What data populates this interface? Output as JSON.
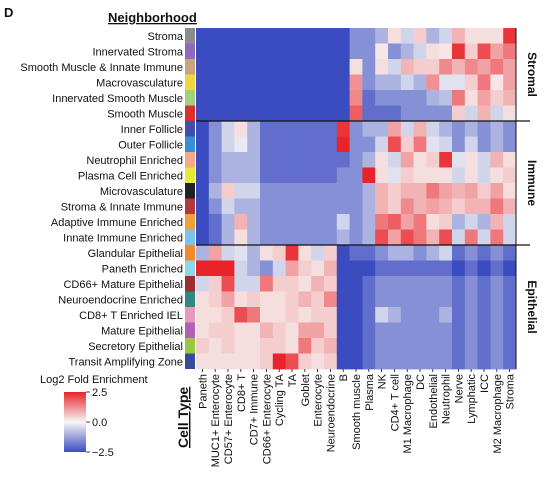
{
  "chart_data": {
    "type": "heatmap",
    "panel_label": "D",
    "row_header": "Neighborhood",
    "column_header": "Cell Type",
    "rows": [
      {
        "name": "Stroma",
        "color": "#8c8c8c"
      },
      {
        "name": "Innervated Stroma",
        "color": "#8e6bbf"
      },
      {
        "name": "Smooth Muscle & Innate Immune",
        "color": "#c9a57a"
      },
      {
        "name": "Macrovasculature",
        "color": "#f0d640"
      },
      {
        "name": "Innervated Smooth Muscle",
        "color": "#a5d07a"
      },
      {
        "name": "Smooth Muscle",
        "color": "#d93030"
      },
      {
        "name": "Inner Follicle",
        "color": "#3f4fa8"
      },
      {
        "name": "Outer Follicle",
        "color": "#3a8ed6"
      },
      {
        "name": "Neutrophil Enriched",
        "color": "#f4a988"
      },
      {
        "name": "Plasma Cell Enriched",
        "color": "#e8e83a"
      },
      {
        "name": "Microvasculature",
        "color": "#222222"
      },
      {
        "name": "Stroma & Innate Immune",
        "color": "#b23a3a"
      },
      {
        "name": "Adaptive Immune Enriched",
        "color": "#f2a13a"
      },
      {
        "name": "Innate Immune Enriched",
        "color": "#7fc1e4"
      },
      {
        "name": "Glandular Epithelial",
        "color": "#f08a2a"
      },
      {
        "name": "Paneth Enriched",
        "color": "#8fd6e8"
      },
      {
        "name": "CD66+ Mature Epithelial",
        "color": "#9a2f2f"
      },
      {
        "name": "Neuroendocrine Enriched",
        "color": "#2e8a80"
      },
      {
        "name": "CD8+ T Enriched IEL",
        "color": "#e89ab8"
      },
      {
        "name": "Mature Epithelial",
        "color": "#b060b8"
      },
      {
        "name": "Secretory Epithelial",
        "color": "#9ac83a"
      },
      {
        "name": "Transit Amplifying Zone",
        "color": "#3a4a9a"
      }
    ],
    "columns": [
      "Paneth",
      "MUC1+ Enterocyte",
      "CD57+ Enterocyte",
      "CD8+ T",
      "CD7+ Immune",
      "CD66+ Enterocyte",
      "Cycling TA",
      "TA",
      "Goblet",
      "Enterocyte",
      "Neuroendocrine",
      "B",
      "Smooth muscle",
      "Plasma",
      "NK",
      "CD4+ T cell",
      "M1 Macrophage",
      "DC",
      "Endothelial",
      "Neutrophil",
      "Nerve",
      "Lymphatic",
      "ICC",
      "M2 Macrophage",
      "Stroma"
    ],
    "groups": [
      {
        "label": "Stromal",
        "row_start": 0,
        "row_end": 5
      },
      {
        "label": "Immune",
        "row_start": 6,
        "row_end": 13
      },
      {
        "label": "Epithelial",
        "row_start": 14,
        "row_end": 21
      }
    ],
    "values": [
      [
        -2.5,
        -2.5,
        -2.5,
        -2.5,
        -2.5,
        -2.5,
        -2.5,
        -2.5,
        -2.5,
        -2.5,
        -2.5,
        -2.5,
        -1.5,
        -1.5,
        -1.0,
        0.3,
        -0.5,
        0.5,
        -1.0,
        -0.5,
        0.8,
        0.3,
        0.3,
        0.3,
        2.3
      ],
      [
        -2.5,
        -2.5,
        -2.5,
        -2.5,
        -2.5,
        -2.5,
        -2.5,
        -2.5,
        -2.5,
        -2.5,
        -2.5,
        -2.5,
        -1.5,
        -1.5,
        0.2,
        -1.5,
        -1.0,
        -0.5,
        0.3,
        0.2,
        2.3,
        0.5,
        2.0,
        1.0,
        1.5
      ],
      [
        -2.5,
        -2.5,
        -2.5,
        -2.5,
        -2.5,
        -2.5,
        -2.5,
        -2.5,
        -2.5,
        -2.5,
        -2.5,
        -2.5,
        0.3,
        -1.5,
        0.3,
        -0.5,
        0.8,
        0.5,
        0.5,
        1.3,
        0.8,
        1.3,
        1.0,
        1.5,
        1.0
      ],
      [
        -2.5,
        -2.5,
        -2.5,
        -2.5,
        -2.5,
        -2.5,
        -2.5,
        -2.5,
        -2.5,
        -2.5,
        -2.5,
        -2.5,
        1.2,
        -1.5,
        -1.0,
        -1.0,
        -0.5,
        -1.0,
        1.2,
        -0.3,
        -0.3,
        0.5,
        1.5,
        0.2,
        1.0
      ],
      [
        -2.5,
        -2.5,
        -2.5,
        -2.5,
        -2.5,
        -2.5,
        -2.5,
        -2.5,
        -2.5,
        -2.5,
        -2.5,
        -2.5,
        1.3,
        -2.0,
        -1.5,
        -1.5,
        -1.5,
        -1.5,
        -1.0,
        -0.8,
        1.5,
        0.3,
        1.0,
        0.5,
        0.8
      ],
      [
        -2.5,
        -2.5,
        -2.5,
        -2.5,
        -2.5,
        -2.5,
        -2.5,
        -2.5,
        -2.5,
        -2.5,
        -2.5,
        -2.5,
        1.8,
        -2.0,
        -2.0,
        -2.0,
        -1.5,
        -1.5,
        -1.5,
        -1.5,
        0.5,
        -0.5,
        0.8,
        -0.5,
        0.3
      ],
      [
        -2.5,
        -1.5,
        -0.5,
        0.3,
        -1.0,
        -2.0,
        -2.0,
        -2.0,
        -2.0,
        -2.0,
        -2.0,
        2.3,
        -1.5,
        -1.0,
        -1.0,
        1.0,
        -0.5,
        0.8,
        -0.5,
        -1.0,
        -1.5,
        -1.0,
        -1.5,
        -1.0,
        -1.5
      ],
      [
        -2.5,
        -1.5,
        -0.5,
        -0.2,
        -1.0,
        -2.0,
        -2.0,
        -2.0,
        -2.0,
        -2.0,
        -2.0,
        2.5,
        -1.5,
        -1.5,
        -0.5,
        2.0,
        0.5,
        1.5,
        -0.3,
        -0.5,
        -1.5,
        -0.5,
        -1.5,
        -1.0,
        -1.5
      ],
      [
        -2.5,
        -1.5,
        -1.0,
        -1.0,
        -1.0,
        -2.0,
        -2.0,
        -2.0,
        -2.0,
        -2.0,
        -2.0,
        -2.0,
        -1.5,
        -1.0,
        0.3,
        -0.5,
        1.0,
        0.3,
        0.5,
        2.3,
        -0.3,
        0.3,
        -0.5,
        0.8,
        0.3
      ],
      [
        -2.5,
        -1.5,
        -1.0,
        -1.0,
        -1.0,
        -2.0,
        -2.0,
        -2.0,
        -2.0,
        -2.0,
        -2.0,
        -1.5,
        -1.5,
        2.5,
        0.3,
        -0.3,
        0.5,
        0.3,
        0.3,
        0.3,
        -0.5,
        0.3,
        -0.5,
        0.3,
        0.5
      ],
      [
        -2.5,
        -1.0,
        0.5,
        -0.5,
        -0.5,
        -1.5,
        -1.5,
        -1.5,
        -1.5,
        -1.5,
        -1.5,
        -1.5,
        -1.5,
        -1.0,
        0.8,
        0.5,
        0.8,
        0.8,
        1.5,
        1.0,
        0.8,
        1.0,
        0.5,
        1.0,
        0.3
      ],
      [
        -2.5,
        -1.5,
        -0.5,
        -1.0,
        -1.0,
        -1.5,
        -1.5,
        -1.5,
        -1.5,
        -1.5,
        -1.5,
        -1.5,
        -1.5,
        -1.0,
        0.8,
        0.5,
        1.3,
        0.8,
        1.0,
        0.8,
        0.5,
        0.8,
        0.8,
        1.5,
        0.8
      ],
      [
        -2.5,
        -2.0,
        -1.0,
        0.8,
        -1.0,
        -1.5,
        -1.5,
        -1.5,
        -1.5,
        -1.5,
        -1.5,
        -0.5,
        -1.5,
        -1.0,
        1.5,
        1.8,
        1.0,
        1.5,
        0.3,
        0.5,
        -1.0,
        -0.5,
        -1.0,
        0.8,
        -0.5
      ],
      [
        -2.5,
        -2.0,
        -1.0,
        0.3,
        -1.0,
        -1.5,
        -1.5,
        -1.5,
        -1.5,
        -1.5,
        -1.5,
        -1.0,
        -1.5,
        -1.0,
        2.0,
        1.0,
        2.0,
        1.5,
        0.8,
        2.0,
        -0.5,
        1.5,
        -0.5,
        1.5,
        -0.5
      ],
      [
        -1.0,
        1.0,
        -0.5,
        -0.3,
        -1.0,
        0.3,
        0.5,
        2.3,
        0.3,
        -0.5,
        0.5,
        -2.5,
        -2.0,
        -2.0,
        -1.5,
        -1.0,
        -1.0,
        -1.5,
        -1.0,
        -0.5,
        -2.0,
        -1.5,
        -2.0,
        -1.5,
        -2.0
      ],
      [
        2.5,
        2.5,
        2.5,
        -0.5,
        -1.0,
        -1.5,
        -0.5,
        1.0,
        0.5,
        0.3,
        0.8,
        -2.5,
        -2.5,
        -2.5,
        -2.0,
        -2.0,
        -2.0,
        -2.0,
        -2.0,
        -2.0,
        -2.5,
        -2.0,
        -2.5,
        -2.0,
        -2.5
      ],
      [
        -0.5,
        0.5,
        2.0,
        -0.5,
        -0.5,
        1.5,
        0.5,
        0.5,
        0.3,
        0.8,
        0.5,
        -2.5,
        -2.5,
        -2.0,
        -1.5,
        -1.5,
        -1.5,
        -1.5,
        -1.5,
        -1.5,
        -2.0,
        -1.5,
        -2.0,
        -1.5,
        -2.0
      ],
      [
        0.3,
        0.5,
        1.0,
        0.3,
        0.5,
        0.3,
        0.3,
        0.5,
        0.8,
        0.5,
        1.3,
        -2.5,
        -2.5,
        -2.0,
        -1.5,
        -1.5,
        -1.5,
        -1.5,
        -1.5,
        -1.5,
        -2.0,
        -1.5,
        -2.0,
        -1.5,
        -2.0
      ],
      [
        0.3,
        0.3,
        0.5,
        2.0,
        1.5,
        0.3,
        0.3,
        0.5,
        0.3,
        0.5,
        0.5,
        -2.5,
        -2.5,
        -2.0,
        -0.5,
        -1.0,
        -1.5,
        -1.5,
        -1.5,
        -1.0,
        -2.0,
        -1.5,
        -2.0,
        -1.5,
        -2.0
      ],
      [
        0.3,
        0.5,
        0.5,
        0.3,
        0.3,
        0.8,
        0.5,
        0.3,
        1.0,
        1.0,
        0.5,
        -2.5,
        -2.5,
        -2.0,
        -1.5,
        -1.5,
        -1.5,
        -1.5,
        -1.5,
        -1.5,
        -2.0,
        -1.5,
        -2.0,
        -1.5,
        -2.0
      ],
      [
        0.5,
        0.3,
        0.5,
        0.3,
        0.3,
        0.5,
        0.5,
        0.3,
        1.5,
        0.5,
        0.8,
        -2.5,
        -2.5,
        -2.0,
        -1.5,
        -1.5,
        -1.5,
        -1.5,
        -1.5,
        -1.5,
        -2.0,
        -1.5,
        -2.0,
        -1.5,
        -2.0
      ],
      [
        0.3,
        0.3,
        0.3,
        0.3,
        0.3,
        0.5,
        2.5,
        2.0,
        0.5,
        0.3,
        0.5,
        -2.5,
        -2.5,
        -2.0,
        -1.5,
        -1.5,
        -1.5,
        -1.5,
        -1.5,
        -1.5,
        -2.0,
        -1.5,
        -2.0,
        -1.5,
        -2.0
      ]
    ],
    "colorbar": {
      "title": "Log2 Fold Enrichment",
      "min": -2.5,
      "max": 2.5,
      "ticks": [
        {
          "value": 2.5,
          "label": "2.5"
        },
        {
          "value": 0,
          "label": "0.0"
        },
        {
          "value": -2.5,
          "label": "−2.5"
        }
      ],
      "low_color": "#3b4cc0",
      "mid_color": "#f7f7f7",
      "high_color": "#e8232a"
    }
  }
}
